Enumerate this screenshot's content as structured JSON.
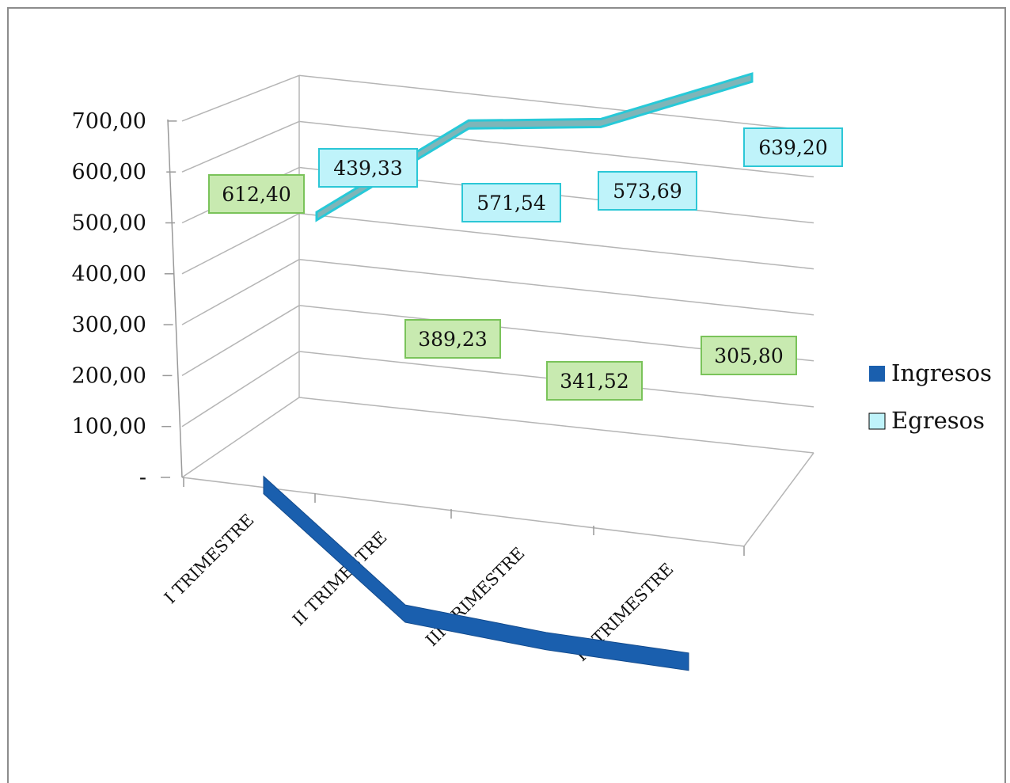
{
  "chart_data": {
    "type": "line",
    "style": "3d",
    "categories": [
      "I TRIMESTRE",
      "II TRIMESTRE",
      "III TRIMESTRE",
      "IV TRIMESTRE"
    ],
    "series": [
      {
        "name": "Ingresos",
        "values": [
          612.4,
          389.23,
          341.52,
          305.8
        ],
        "labels": [
          "612,40",
          "389,23",
          "341,52",
          "305,80"
        ],
        "color": "#1a5fae"
      },
      {
        "name": "Egresos",
        "values": [
          439.33,
          571.54,
          573.69,
          639.2
        ],
        "labels": [
          "439,33",
          "571,54",
          "573,69",
          "639,20"
        ],
        "color": "#27c9d8"
      }
    ],
    "y_ticks": [
      "-",
      "100,00",
      "200,00",
      "300,00",
      "400,00",
      "500,00",
      "600,00",
      "700,00"
    ],
    "ylim": [
      0,
      700
    ],
    "grid": true,
    "legend": "right",
    "ingresos_label_fill": "#c8eab0",
    "egresos_label_fill": "#bff3fa"
  }
}
